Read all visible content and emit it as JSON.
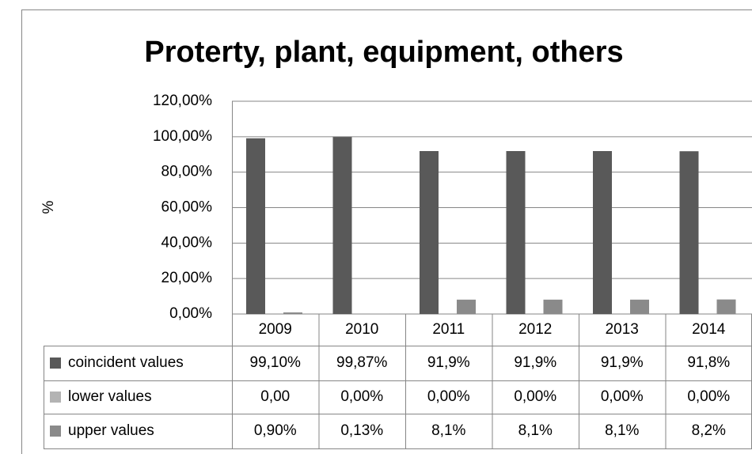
{
  "chart_data": {
    "type": "bar",
    "title": "Proterty, plant, equipment, others",
    "y_label": "%",
    "categories": [
      "2009",
      "2010",
      "2011",
      "2012",
      "2013",
      "2014"
    ],
    "series": [
      {
        "name": "coincident  values",
        "color": "#595959",
        "values": [
          99.1,
          99.87,
          91.9,
          91.9,
          91.9,
          91.8
        ],
        "value_labels": [
          "99,10%",
          "99,87%",
          "91,9%",
          "91,9%",
          "91,9%",
          "91,8%"
        ]
      },
      {
        "name": "lower values",
        "color": "#b3b3b3",
        "values": [
          0,
          0,
          0,
          0,
          0,
          0
        ],
        "value_labels": [
          "0,00",
          "0,00%",
          "0,00%",
          "0,00%",
          "0,00%",
          "0,00%"
        ]
      },
      {
        "name": "upper values",
        "color": "#8a8a8a",
        "values": [
          0.9,
          0.13,
          8.1,
          8.1,
          8.1,
          8.2
        ],
        "value_labels": [
          "0,90%",
          "0,13%",
          "8,1%",
          "8,1%",
          "8,1%",
          "8,2%"
        ]
      }
    ],
    "ylim": [
      0,
      120
    ],
    "yticks": [
      {
        "value": 0,
        "label": "0,00%"
      },
      {
        "value": 20,
        "label": "20,00%"
      },
      {
        "value": 40,
        "label": "40,00%"
      },
      {
        "value": 60,
        "label": "60,00%"
      },
      {
        "value": 80,
        "label": "80,00%"
      },
      {
        "value": 100,
        "label": "100,00%"
      },
      {
        "value": 120,
        "label": "120,00%"
      }
    ],
    "grid": true
  }
}
